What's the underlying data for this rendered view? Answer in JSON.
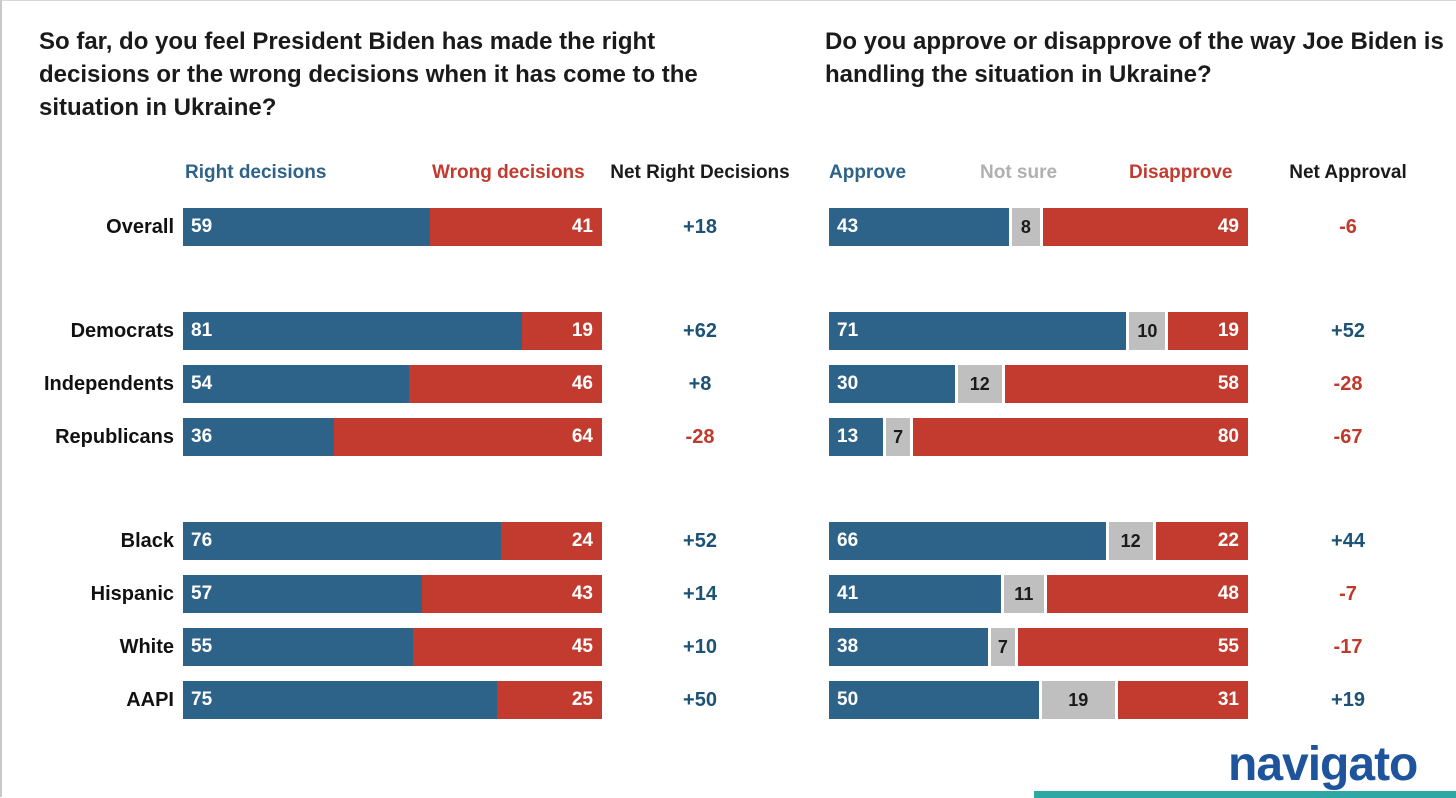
{
  "branding": {
    "wordmark": "navigato",
    "wordmark_color": "#1E549B",
    "accent_teal": "#2EA8A4"
  },
  "colors": {
    "bar_blue": "#2E6389",
    "bar_red": "#C33B2F",
    "bar_gray": "#BFBFBF",
    "net_positive": "#1B5276",
    "net_negative": "#C0392B"
  },
  "chart_data": [
    {
      "type": "bar",
      "variant": "horizontal-stacked-100",
      "title": "So far, do you feel President Biden has made the right\ndecisions or the wrong decisions when it has come to the\nsituation in Ukraine?",
      "categories": [
        "Overall",
        "Democrats",
        "Independents",
        "Republicans",
        "Black",
        "Hispanic",
        "White",
        "AAPI"
      ],
      "row_groups": [
        1,
        3,
        4
      ],
      "xlim": [
        0,
        100
      ],
      "series": [
        {
          "name": "Right decisions",
          "color": "#2E6389",
          "values": [
            59,
            81,
            54,
            36,
            76,
            57,
            55,
            75
          ]
        },
        {
          "name": "Wrong decisions",
          "color": "#C33B2F",
          "values": [
            41,
            19,
            46,
            64,
            24,
            43,
            45,
            25
          ]
        }
      ],
      "net": {
        "label": "Net Right Decisions",
        "values": [
          "+18",
          "+62",
          "+8",
          "-28",
          "+52",
          "+14",
          "+10",
          "+50"
        ],
        "positive_color": "#1B5276",
        "negative_color": "#C0392B"
      }
    },
    {
      "type": "bar",
      "variant": "horizontal-stacked-100",
      "title": "Do you approve or disapprove of the way Joe Biden is\nhandling the situation in Ukraine?",
      "categories": [
        "Overall",
        "Democrats",
        "Independents",
        "Republicans",
        "Black",
        "Hispanic",
        "White",
        "AAPI"
      ],
      "row_groups": [
        1,
        3,
        4
      ],
      "xlim": [
        0,
        100
      ],
      "series": [
        {
          "name": "Approve",
          "color": "#2E6389",
          "values": [
            43,
            71,
            30,
            13,
            66,
            41,
            38,
            50
          ]
        },
        {
          "name": "Not sure",
          "color": "#BFBFBF",
          "values": [
            8,
            10,
            12,
            7,
            12,
            11,
            7,
            19
          ]
        },
        {
          "name": "Disapprove",
          "color": "#C33B2F",
          "values": [
            49,
            19,
            58,
            80,
            22,
            48,
            55,
            31
          ]
        }
      ],
      "net": {
        "label": "Net Approval",
        "values": [
          "-6",
          "+52",
          "-28",
          "-67",
          "+44",
          "-7",
          "-17",
          "+19"
        ],
        "positive_color": "#1B5276",
        "negative_color": "#C0392B"
      }
    }
  ]
}
